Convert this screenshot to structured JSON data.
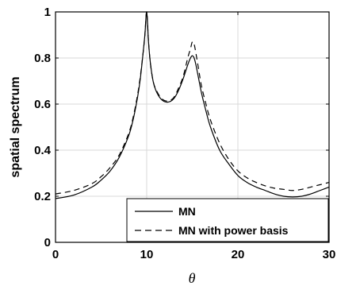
{
  "chart_data": {
    "type": "line",
    "title": "",
    "xlabel": "θ",
    "ylabel": "spatial spectrum",
    "xlim": [
      0,
      30
    ],
    "ylim": [
      0,
      1
    ],
    "xticks": [
      "0",
      "10",
      "20",
      "30"
    ],
    "yticks": [
      "0",
      "0.2",
      "0.4",
      "0.6",
      "0.8",
      "1"
    ],
    "grid": true,
    "legend_position": "bottom-right",
    "series": [
      {
        "name": "MN",
        "style": "solid",
        "color": "#000000",
        "x": [
          0,
          2,
          4,
          5,
          6,
          7,
          8,
          8.5,
          9,
          9.3,
          9.6,
          9.8,
          10,
          10.2,
          10.4,
          10.7,
          11,
          11.5,
          12,
          12.5,
          13,
          13.5,
          14,
          14.5,
          14.8,
          15,
          15.2,
          15.4,
          15.7,
          16,
          16.5,
          17,
          18,
          19,
          20,
          21,
          22,
          23,
          24,
          25,
          26,
          27,
          28,
          29,
          30
        ],
        "y": [
          0.19,
          0.205,
          0.24,
          0.27,
          0.31,
          0.37,
          0.46,
          0.53,
          0.63,
          0.71,
          0.82,
          0.9,
          1.0,
          0.87,
          0.78,
          0.7,
          0.66,
          0.625,
          0.61,
          0.61,
          0.625,
          0.66,
          0.71,
          0.77,
          0.8,
          0.81,
          0.8,
          0.77,
          0.71,
          0.65,
          0.57,
          0.5,
          0.4,
          0.34,
          0.29,
          0.26,
          0.24,
          0.225,
          0.21,
          0.2,
          0.197,
          0.2,
          0.21,
          0.225,
          0.24
        ]
      },
      {
        "name": "MN with power basis",
        "style": "dashed",
        "color": "#000000",
        "x": [
          0,
          2,
          4,
          5,
          6,
          7,
          8,
          8.5,
          9,
          9.3,
          9.6,
          9.8,
          10,
          10.2,
          10.4,
          10.7,
          11,
          11.5,
          12,
          12.5,
          13,
          13.5,
          14,
          14.5,
          14.8,
          15,
          15.2,
          15.4,
          15.7,
          16,
          16.5,
          17,
          18,
          19,
          20,
          21,
          22,
          23,
          24,
          25,
          26,
          27,
          28,
          29,
          30
        ],
        "y": [
          0.21,
          0.225,
          0.255,
          0.285,
          0.325,
          0.38,
          0.47,
          0.54,
          0.64,
          0.72,
          0.82,
          0.9,
          1.0,
          0.87,
          0.78,
          0.7,
          0.665,
          0.63,
          0.615,
          0.615,
          0.63,
          0.67,
          0.72,
          0.8,
          0.84,
          0.87,
          0.86,
          0.82,
          0.75,
          0.68,
          0.6,
          0.53,
          0.43,
          0.36,
          0.31,
          0.28,
          0.26,
          0.245,
          0.235,
          0.23,
          0.225,
          0.23,
          0.24,
          0.25,
          0.26
        ]
      }
    ]
  }
}
